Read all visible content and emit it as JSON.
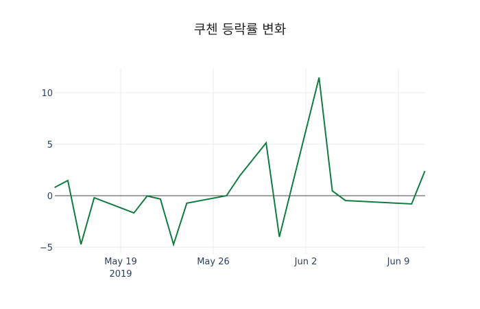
{
  "chart_data": {
    "type": "line",
    "title": "쿠첸 등락률 변화",
    "xlabel": "",
    "ylabel": "",
    "x": [
      "2019-05-14",
      "2019-05-15",
      "2019-05-16",
      "2019-05-17",
      "2019-05-20",
      "2019-05-21",
      "2019-05-22",
      "2019-05-23",
      "2019-05-24",
      "2019-05-27",
      "2019-05-28",
      "2019-05-30",
      "2019-05-31",
      "2019-06-03",
      "2019-06-04",
      "2019-06-05",
      "2019-06-10",
      "2019-06-11"
    ],
    "series": [
      {
        "name": "등락률",
        "color": "#0f7b3e",
        "values": [
          0.8,
          1.47,
          -4.73,
          -0.2,
          -1.67,
          -0.03,
          -0.33,
          -4.73,
          -0.73,
          0.0,
          1.93,
          5.13,
          -4.0,
          11.47,
          0.47,
          -0.47,
          -0.8,
          2.4
        ]
      }
    ],
    "x_ticks": [
      {
        "date": "2019-05-19",
        "label": "May 19",
        "sublabel": "2019"
      },
      {
        "date": "2019-05-26",
        "label": "May 26",
        "sublabel": ""
      },
      {
        "date": "2019-06-02",
        "label": "Jun 2",
        "sublabel": ""
      },
      {
        "date": "2019-06-09",
        "label": "Jun 9",
        "sublabel": ""
      }
    ],
    "y_ticks": [
      10,
      5,
      0,
      -5
    ],
    "y_tick_labels": [
      "10",
      "5",
      "0",
      "−5"
    ],
    "ylim": [
      -5.4,
      12.5
    ],
    "xlim": [
      "2019-05-14",
      "2019-06-11"
    ],
    "grid": true,
    "zero_line": true,
    "legend": "none"
  }
}
